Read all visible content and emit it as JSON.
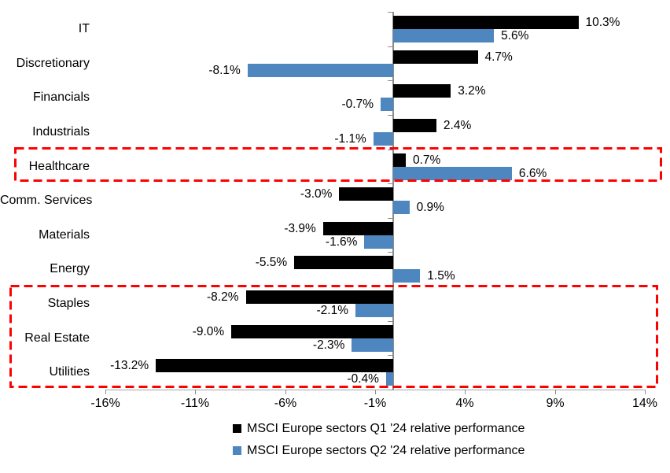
{
  "chart_data": {
    "type": "bar",
    "orientation": "horizontal",
    "title": "",
    "categories": [
      "IT",
      "Discretionary",
      "Financials",
      "Industrials",
      "Healthcare",
      "Comm. Services",
      "Materials",
      "Energy",
      "Staples",
      "Real Estate",
      "Utilities"
    ],
    "series": [
      {
        "name": "MSCI Europe sectors Q1 '24 relative performance",
        "color": "#000000",
        "values": [
          10.3,
          4.7,
          3.2,
          2.4,
          0.7,
          -3.0,
          -3.9,
          -5.5,
          -8.2,
          -9.0,
          -13.2
        ],
        "labels": [
          "10.3%",
          "4.7%",
          "3.2%",
          "2.4%",
          "0.7%",
          "-3.0%",
          "-3.9%",
          "-5.5%",
          "-8.2%",
          "-9.0%",
          "-13.2%"
        ]
      },
      {
        "name": "MSCI Europe sectors Q2 '24 relative performance",
        "color": "#4E86C0",
        "values": [
          5.6,
          -8.1,
          -0.7,
          -1.1,
          6.6,
          0.9,
          -1.6,
          1.5,
          -2.1,
          -2.3,
          -0.4
        ],
        "labels": [
          "5.6%",
          "-8.1%",
          "-0.7%",
          "-1.1%",
          "6.6%",
          "0.9%",
          "-1.6%",
          "1.5%",
          "-2.1%",
          "-2.3%",
          "-0.4%"
        ]
      }
    ],
    "x_axis": {
      "min": -16,
      "max": 14,
      "tick_values": [
        -16,
        -11,
        -6,
        -1,
        4,
        9,
        14
      ],
      "tick_labels": [
        "-16%",
        "-11%",
        "-6%",
        "-1%",
        "4%",
        "9%",
        "14%"
      ]
    },
    "grid": false,
    "legend_position": "bottom",
    "axis_color": "#8C8C8C",
    "highlight_color": "#FF0000",
    "highlights": [
      {
        "sectors": [
          "Healthcare"
        ],
        "style": "red-dashed-box"
      },
      {
        "sectors": [
          "Staples",
          "Real Estate",
          "Utilities"
        ],
        "style": "red-dashed-box"
      }
    ]
  }
}
